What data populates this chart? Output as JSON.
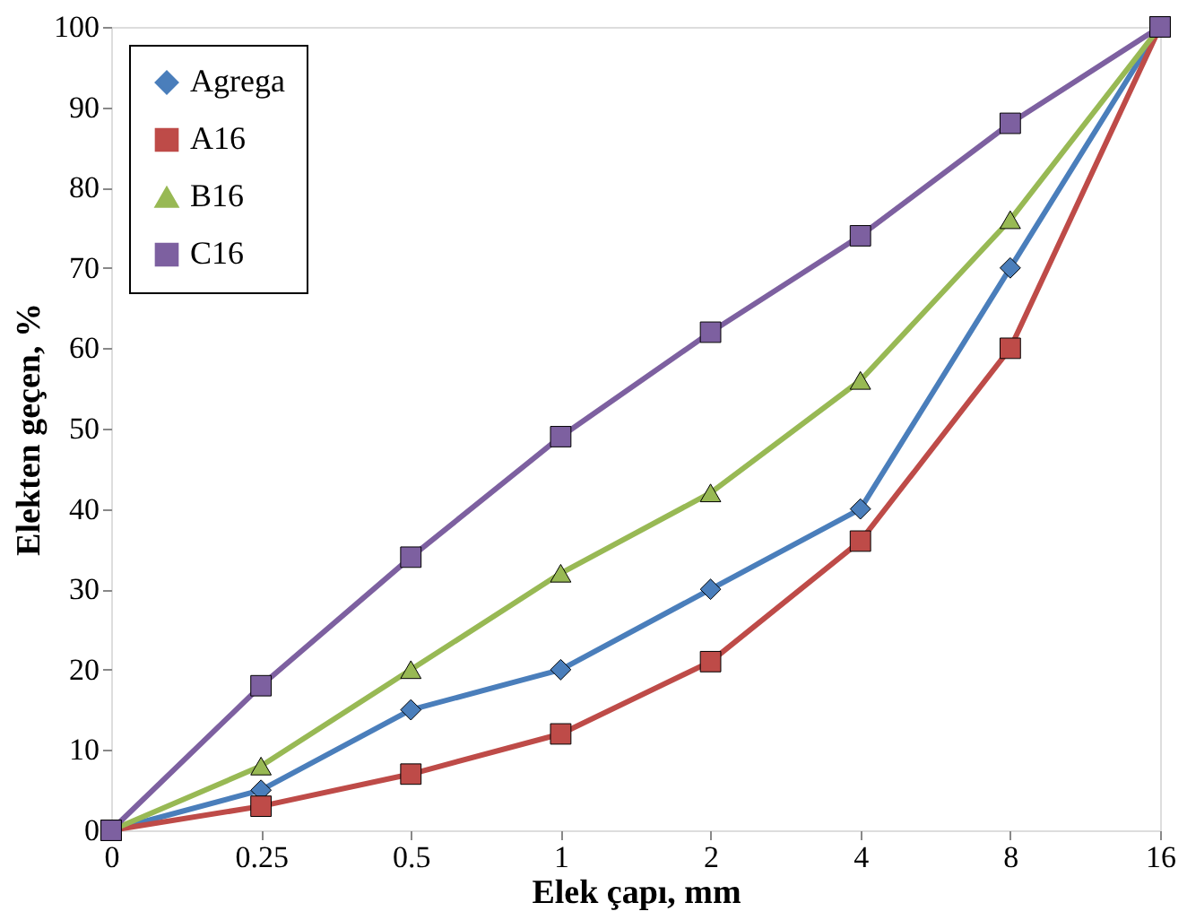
{
  "chart_data": {
    "type": "line",
    "xlabel": "Elek çapı, mm",
    "ylabel": "Elekten geçen, %",
    "categories": [
      "0",
      "0.25",
      "0.5",
      "1",
      "2",
      "4",
      "8",
      "16"
    ],
    "series": [
      {
        "name": "Agrega",
        "color": "#4a7ebb",
        "marker": "diamond",
        "values": [
          0,
          5,
          15,
          20,
          30,
          40,
          70,
          100
        ]
      },
      {
        "name": "A16",
        "color": "#be4b48",
        "marker": "square",
        "values": [
          0,
          3,
          7,
          12,
          21,
          36,
          60,
          100
        ]
      },
      {
        "name": "B16",
        "color": "#98b954",
        "marker": "triangle",
        "values": [
          0,
          8,
          20,
          32,
          42,
          56,
          76,
          100
        ]
      },
      {
        "name": "C16",
        "color": "#7d60a0",
        "marker": "square",
        "values": [
          0,
          18,
          34,
          49,
          62,
          74,
          88,
          100
        ]
      }
    ],
    "ylim": [
      0,
      100
    ],
    "yticks": [
      0,
      10,
      20,
      30,
      40,
      50,
      60,
      70,
      80,
      90,
      100
    ],
    "grid": false,
    "legend": "top left",
    "line_style": "solid"
  }
}
